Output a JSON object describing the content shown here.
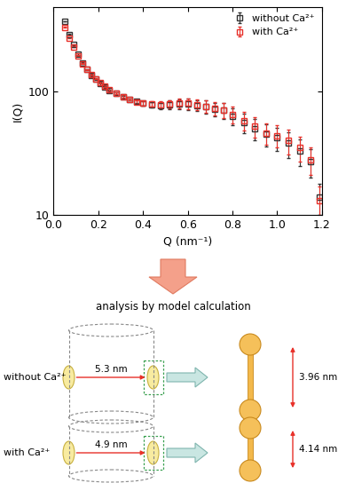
{
  "chart_data": {
    "type": "scatter",
    "x_label": "Q (nm⁻¹)",
    "y_label": "I(Q)",
    "x": [
      0.05,
      0.07,
      0.09,
      0.11,
      0.13,
      0.15,
      0.17,
      0.19,
      0.21,
      0.23,
      0.25,
      0.28,
      0.31,
      0.34,
      0.37,
      0.4,
      0.44,
      0.48,
      0.52,
      0.56,
      0.6,
      0.64,
      0.68,
      0.72,
      0.76,
      0.8,
      0.85,
      0.9,
      0.95,
      1.0,
      1.05,
      1.1,
      1.15,
      1.19
    ],
    "series": [
      {
        "name": "without Ca²⁺",
        "color": "#333333",
        "marker": "square",
        "values": [
          370,
          290,
          240,
          200,
          170,
          150,
          135,
          125,
          115,
          108,
          102,
          96,
          90,
          86,
          83,
          80,
          78,
          77,
          78,
          79,
          79,
          77,
          75,
          72,
          70,
          63,
          56,
          50,
          45,
          42,
          38,
          33,
          27,
          14
        ],
        "errors": [
          2,
          2,
          2,
          2,
          2,
          2,
          2,
          2,
          2,
          2,
          2,
          2,
          2,
          2,
          3,
          3,
          4,
          5,
          6,
          7,
          8,
          8,
          9,
          9,
          10,
          10,
          10,
          10,
          9,
          9,
          9,
          8,
          7,
          4
        ]
      },
      {
        "name": "with Ca²⁺",
        "color": "#e8312a",
        "marker": "square",
        "values": [
          330,
          270,
          230,
          195,
          168,
          150,
          137,
          127,
          118,
          110,
          104,
          97,
          91,
          86,
          82,
          80,
          79,
          78,
          79,
          80,
          80,
          78,
          76,
          73,
          71,
          65,
          58,
          52,
          46,
          44,
          40,
          35,
          28,
          13
        ],
        "errors": [
          2,
          2,
          2,
          2,
          2,
          2,
          2,
          2,
          2,
          2,
          2,
          2,
          2,
          2,
          3,
          3,
          4,
          5,
          6,
          7,
          8,
          8,
          9,
          9,
          10,
          10,
          10,
          10,
          9,
          9,
          9,
          8,
          7,
          4
        ]
      }
    ],
    "xlim": [
      0.0,
      1.2
    ],
    "xticks": [
      0.0,
      0.2,
      0.4,
      0.6,
      0.8,
      1.0,
      1.2
    ],
    "ylim": [
      10,
      480
    ],
    "yticks": [
      10,
      100
    ],
    "log": "y",
    "legend": "upper right"
  },
  "diagram": {
    "arrow_text": "analysis by model calculation",
    "rows": [
      {
        "label": "without Ca²⁺",
        "radius": "5.3 nm",
        "length": "3.96 nm"
      },
      {
        "label": "with Ca²⁺",
        "radius": "4.9 nm",
        "length": "4.14 nm"
      }
    ]
  }
}
